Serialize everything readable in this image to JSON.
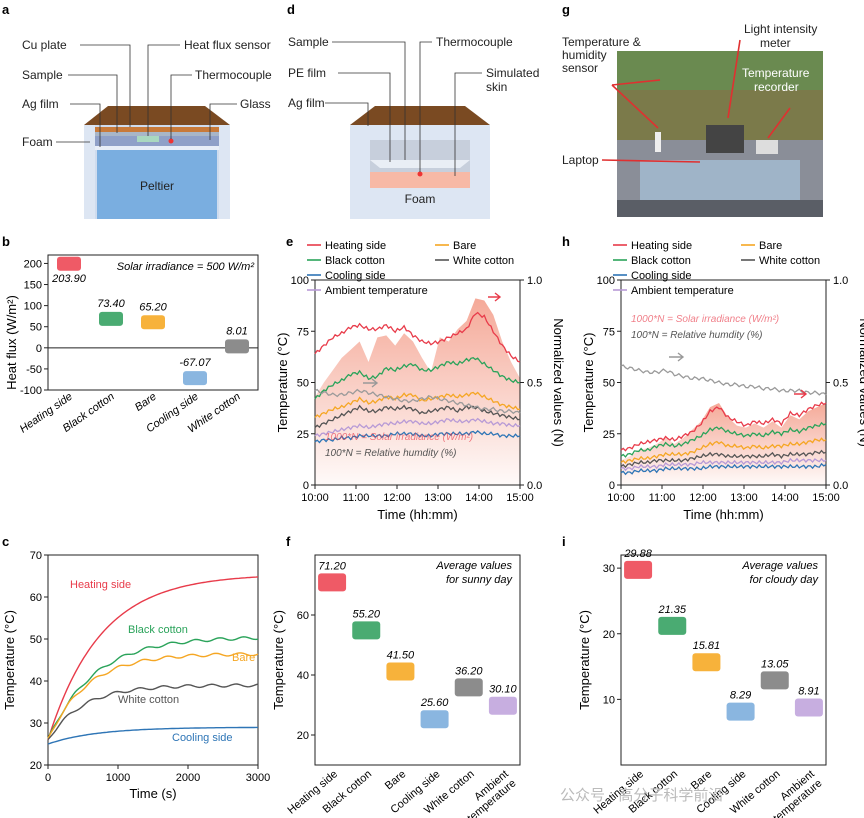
{
  "panels": {
    "a": {
      "letter": "a",
      "labels": {
        "cu_plate": "Cu plate",
        "heat_flux_sensor": "Heat flux sensor",
        "sample": "Sample",
        "thermocouple": "Thermocouple",
        "ag_film": "Ag film",
        "glass": "Glass",
        "foam": "Foam",
        "peltier": "Peltier"
      }
    },
    "d": {
      "letter": "d",
      "labels": {
        "sample": "Sample",
        "thermocouple": "Thermocouple",
        "pe_film": "PE film",
        "simulated_skin": "Simulated\nskin",
        "ag_film": "Ag film",
        "foam": "Foam"
      }
    },
    "g": {
      "letter": "g",
      "labels": {
        "temp_humidity": "Temperature &\nhumidity\nsensor",
        "light_meter": "Light intensity\nmeter",
        "temp_recorder": "Temperature\nrecorder",
        "laptop": "Laptop"
      }
    },
    "b": {
      "letter": "b"
    },
    "c": {
      "letter": "c"
    },
    "e": {
      "letter": "e"
    },
    "f": {
      "letter": "f"
    },
    "h": {
      "letter": "h"
    },
    "i": {
      "letter": "i"
    }
  },
  "colors": {
    "heating": "#e83b4a",
    "black_cotton": "#2aa35a",
    "bare": "#f5a623",
    "cooling": "#2e75b6",
    "white_cotton": "#555555",
    "ambient": "#b79ad6",
    "humidity": "#9a9a9a",
    "solar_fill": "#f39a86",
    "bar_heating": "#ef5a66",
    "bar_black": "#4aab72",
    "bar_bare": "#f7b23b",
    "bar_cooling": "#8ab6e0",
    "bar_white": "#8c8c8c",
    "bar_ambient": "#c7aee0"
  },
  "watermark": "公众号 · 高分子科学前沿",
  "chart_data": [
    {
      "id": "b",
      "type": "bar",
      "title": "Solar irradiance = 500 W/m²",
      "ylabel": "Heat flux (W/m²)",
      "ylim": [
        -100,
        220
      ],
      "yticks": [
        "-100",
        "-50",
        "0",
        "50",
        "100",
        "150",
        "200"
      ],
      "categories": [
        "Heating side",
        "Black cotton",
        "Bare",
        "Cooling side",
        "White cotton"
      ],
      "values": [
        203.9,
        73.4,
        65.2,
        -67.07,
        8.01
      ],
      "value_labels": [
        "203.90",
        "73.40",
        "65.20",
        "-67.07",
        "8.01"
      ]
    },
    {
      "id": "c",
      "type": "line",
      "xlabel": "Time (s)",
      "ylabel": "Temperature (°C)",
      "xlim": [
        0,
        3000
      ],
      "ylim": [
        20,
        70
      ],
      "xticks": [
        "0",
        "1000",
        "2000",
        "3000"
      ],
      "yticks": [
        "20",
        "30",
        "40",
        "50",
        "60",
        "70"
      ],
      "series": [
        {
          "name": "Heating side",
          "final": 65.5,
          "start": 26,
          "tau": 750
        },
        {
          "name": "Black cotton",
          "final": 50.5,
          "start": 26,
          "tau": 650
        },
        {
          "name": "Bare",
          "final": 46.5,
          "start": 26,
          "tau": 550
        },
        {
          "name": "White cotton",
          "final": 39,
          "start": 26,
          "tau": 500
        },
        {
          "name": "Cooling side",
          "final": 29,
          "start": 25,
          "tau": 700
        }
      ]
    },
    {
      "id": "e",
      "type": "line",
      "xlabel": "Time (hh:mm)",
      "ylabel": "Temperature (°C)",
      "y2label": "Normalized values (N)",
      "ylim": [
        0,
        100
      ],
      "y2lim": [
        0,
        1
      ],
      "xticks": [
        "10:00",
        "11:00",
        "12:00",
        "13:00",
        "14:00",
        "15:00"
      ],
      "yticks": [
        "0",
        "25",
        "50",
        "75",
        "100"
      ],
      "y2ticks": [
        "0.0",
        "0.5",
        "1.0"
      ],
      "legend": [
        "Heating side",
        "Bare",
        "Black cotton",
        "White cotton",
        "Cooling side",
        "Ambient temperature"
      ],
      "annotations": [
        "1000*N = Solar irradiance (W/m²)",
        "100*N = Relative humdity (%)"
      ],
      "series": [
        {
          "name": "Heating side",
          "values": [
            64,
            68,
            72,
            74,
            77,
            78,
            76,
            76,
            78,
            75,
            77,
            73,
            70,
            69,
            70,
            72,
            74,
            76,
            84,
            82,
            75,
            68,
            63,
            60
          ]
        },
        {
          "name": "Black cotton",
          "values": [
            42,
            46,
            49,
            51,
            54,
            55,
            52,
            53,
            57,
            56,
            58,
            59,
            56,
            56,
            58,
            60,
            59,
            61,
            62,
            59,
            56,
            53,
            51,
            50
          ]
        },
        {
          "name": "Bare",
          "values": [
            33,
            35,
            37,
            38,
            40,
            42,
            40,
            41,
            43,
            42,
            44,
            44,
            41,
            42,
            43,
            44,
            43,
            44,
            45,
            43,
            41,
            39,
            38,
            37
          ]
        },
        {
          "name": "White cotton",
          "values": [
            28,
            30,
            32,
            34,
            36,
            38,
            36,
            36,
            38,
            37,
            38,
            37,
            35,
            36,
            37,
            38,
            36,
            38,
            38,
            36,
            35,
            34,
            33,
            32
          ]
        },
        {
          "name": "Ambient temperature",
          "values": [
            24,
            25,
            26,
            27,
            28,
            29,
            28,
            29,
            30,
            30,
            31,
            31,
            30,
            30,
            31,
            32,
            31,
            31,
            32,
            31,
            30,
            30,
            29,
            29
          ]
        },
        {
          "name": "Cooling side",
          "values": [
            21,
            22,
            22,
            23,
            23,
            24,
            24,
            24,
            24,
            25,
            25,
            25,
            24,
            24,
            25,
            25,
            25,
            25,
            26,
            25,
            25,
            24,
            24,
            24
          ]
        },
        {
          "name": "Relative humidity",
          "values": [
            0.46,
            0.45,
            0.44,
            0.44,
            0.45,
            0.46,
            0.45,
            0.44,
            0.43,
            0.42,
            0.41,
            0.41,
            0.42,
            0.43,
            0.42,
            0.41,
            0.4,
            0.39,
            0.38,
            0.37,
            0.37,
            0.36,
            0.36,
            0.35
          ]
        },
        {
          "name": "Solar irradiance",
          "values": [
            0.43,
            0.5,
            0.56,
            0.62,
            0.66,
            0.7,
            0.6,
            0.72,
            0.73,
            0.68,
            0.74,
            0.7,
            0.62,
            0.55,
            0.72,
            0.7,
            0.76,
            0.8,
            0.91,
            0.9,
            0.83,
            0.7,
            0.6,
            0.52
          ]
        }
      ]
    },
    {
      "id": "h",
      "type": "line",
      "xlabel": "Time (hh:mm)",
      "ylabel": "Temperature (°C)",
      "y2label": "Normalized values (N)",
      "ylim": [
        0,
        100
      ],
      "y2lim": [
        0,
        1
      ],
      "xticks": [
        "10:00",
        "11:00",
        "12:00",
        "13:00",
        "14:00",
        "15:00"
      ],
      "yticks": [
        "0",
        "25",
        "50",
        "75",
        "100"
      ],
      "y2ticks": [
        "0.0",
        "0.5",
        "1.0"
      ],
      "legend": [
        "Heating side",
        "Bare",
        "Black cotton",
        "White cotton",
        "Cooling side",
        "Ambient temperature"
      ],
      "annotations": [
        "1000*N = Solar irradiance (W/m²)",
        "100*N = Relative humdity (%)"
      ],
      "series": [
        {
          "name": "Heating side",
          "values": [
            17,
            18,
            20,
            21,
            22,
            23,
            22,
            24,
            26,
            30,
            36,
            38,
            33,
            31,
            29,
            31,
            30,
            32,
            30,
            35,
            34,
            37,
            39,
            40
          ]
        },
        {
          "name": "Black cotton",
          "values": [
            14,
            15,
            17,
            17,
            19,
            20,
            19,
            20,
            22,
            24,
            27,
            28,
            26,
            25,
            24,
            25,
            24,
            26,
            25,
            27,
            26,
            28,
            29,
            30
          ]
        },
        {
          "name": "Bare",
          "values": [
            11,
            12,
            13,
            13,
            14,
            15,
            15,
            15,
            16,
            18,
            20,
            21,
            19,
            19,
            18,
            19,
            18,
            19,
            19,
            20,
            20,
            21,
            22,
            22
          ]
        },
        {
          "name": "White cotton",
          "values": [
            9,
            10,
            11,
            11,
            12,
            12,
            12,
            12,
            13,
            14,
            15,
            15,
            14,
            14,
            14,
            14,
            14,
            15,
            14,
            15,
            15,
            15,
            16,
            16
          ]
        },
        {
          "name": "Ambient temperature",
          "values": [
            8,
            8,
            9,
            9,
            9,
            10,
            10,
            10,
            10,
            11,
            11,
            11,
            11,
            11,
            11,
            11,
            11,
            11,
            11,
            12,
            12,
            12,
            12,
            12
          ]
        },
        {
          "name": "Cooling side",
          "values": [
            6,
            6,
            7,
            7,
            7,
            8,
            8,
            8,
            8,
            8,
            9,
            9,
            9,
            9,
            9,
            9,
            9,
            9,
            9,
            9,
            9,
            9,
            9,
            10
          ]
        },
        {
          "name": "Relative humidity",
          "values": [
            0.58,
            0.57,
            0.56,
            0.55,
            0.55,
            0.56,
            0.54,
            0.53,
            0.52,
            0.52,
            0.51,
            0.5,
            0.49,
            0.49,
            0.48,
            0.48,
            0.47,
            0.47,
            0.46,
            0.46,
            0.46,
            0.45,
            0.45,
            0.44
          ]
        },
        {
          "name": "Solar irradiance",
          "values": [
            0.12,
            0.14,
            0.17,
            0.18,
            0.2,
            0.23,
            0.2,
            0.23,
            0.27,
            0.31,
            0.38,
            0.4,
            0.33,
            0.29,
            0.28,
            0.3,
            0.28,
            0.31,
            0.28,
            0.34,
            0.32,
            0.36,
            0.38,
            0.4
          ]
        }
      ]
    },
    {
      "id": "f",
      "type": "bar",
      "title": "Average values\nfor sunny day",
      "ylabel": "Temperature (°C)",
      "ylim": [
        10,
        80
      ],
      "yticks": [
        "20",
        "40",
        "60"
      ],
      "categories": [
        "Heating side",
        "Black cotton",
        "Bare",
        "Cooling side",
        "White cotton",
        "Ambient\ntemperature"
      ],
      "values": [
        71.2,
        55.2,
        41.5,
        25.6,
        36.2,
        30.1
      ],
      "value_labels": [
        "71.20",
        "55.20",
        "41.50",
        "25.60",
        "36.20",
        "30.10"
      ]
    },
    {
      "id": "i",
      "type": "bar",
      "title": "Average values\nfor cloudy day",
      "ylabel": "Temperature (°C)",
      "ylim": [
        0,
        32
      ],
      "yticks": [
        "10",
        "20",
        "30"
      ],
      "categories": [
        "Heating side",
        "Black cotton",
        "Bare",
        "Cooling side",
        "White cotton",
        "Ambient\ntemperature"
      ],
      "values": [
        29.88,
        21.35,
        15.81,
        8.29,
        13.05,
        8.91
      ],
      "value_labels": [
        "29.88",
        "21.35",
        "15.81",
        "8.29",
        "13.05",
        "8.91"
      ]
    }
  ]
}
